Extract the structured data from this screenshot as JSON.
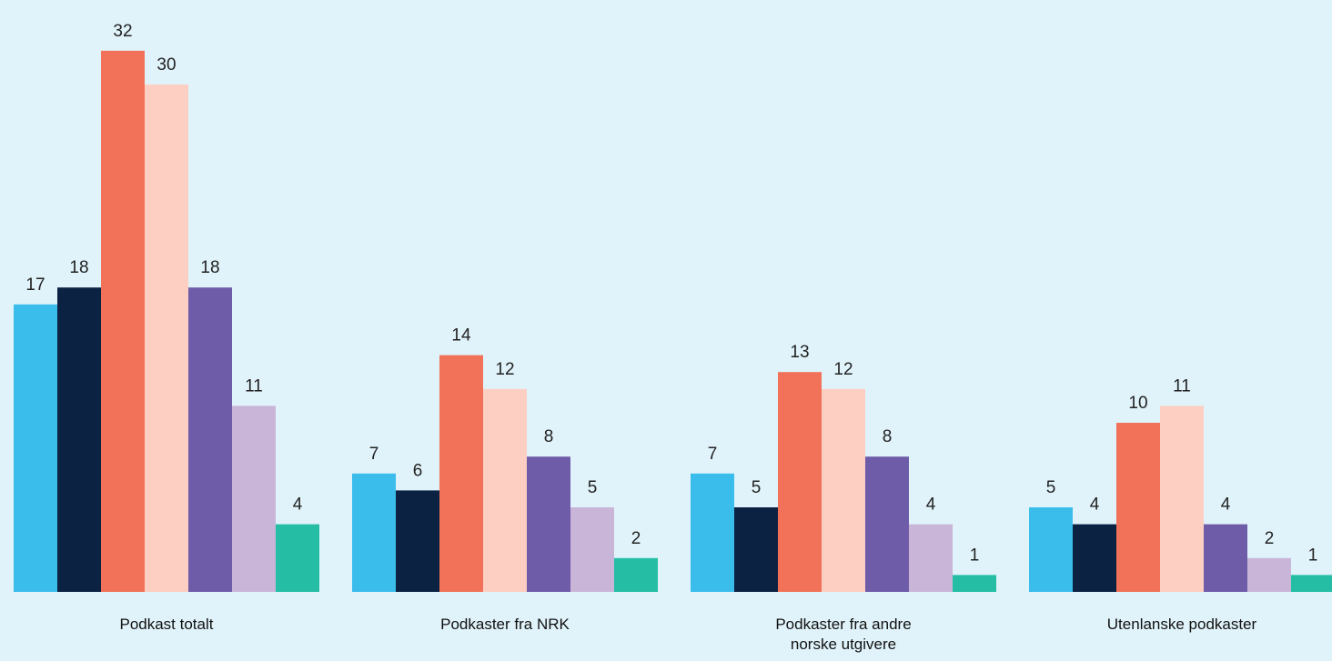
{
  "chart_data": {
    "type": "bar",
    "title": "",
    "xlabel": "",
    "ylabel": "",
    "ylim": [
      0,
      32
    ],
    "grid": false,
    "legend": "none",
    "categories": [
      [
        "Podkast totalt"
      ],
      [
        "Podkaster fra NRK"
      ],
      [
        "Podkaster fra andre",
        "norske utgivere"
      ],
      [
        "Utenlanske podkaster"
      ]
    ],
    "series": [
      {
        "color": "#3bbdec",
        "values": [
          17,
          7,
          7,
          5
        ]
      },
      {
        "color": "#0b2242",
        "values": [
          18,
          6,
          5,
          4
        ]
      },
      {
        "color": "#f27259",
        "values": [
          32,
          14,
          13,
          10
        ]
      },
      {
        "color": "#fdcfc3",
        "values": [
          30,
          12,
          12,
          11
        ]
      },
      {
        "color": "#6e5ca8",
        "values": [
          18,
          8,
          8,
          4
        ]
      },
      {
        "color": "#c8b5d8",
        "values": [
          11,
          5,
          4,
          2
        ]
      },
      {
        "color": "#25bea5",
        "values": [
          4,
          2,
          1,
          1
        ]
      }
    ]
  }
}
